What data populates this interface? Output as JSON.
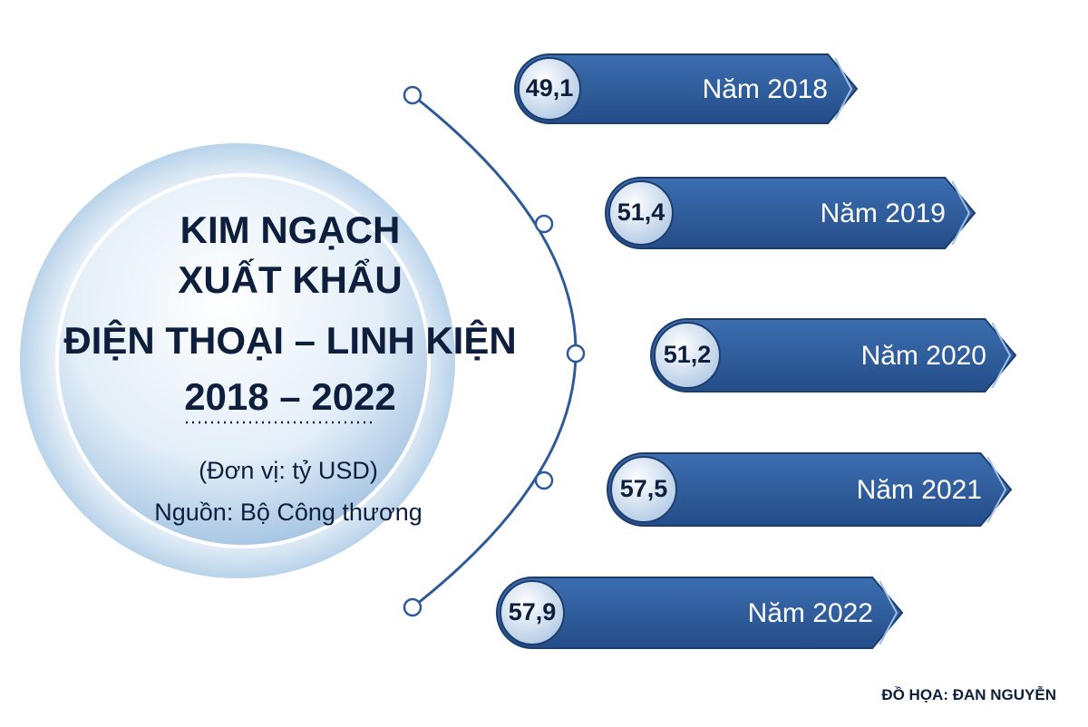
{
  "title_lines": [
    "KIM NGẠCH",
    "XUẤT KHẨU",
    "ĐIỆN THOẠI – LINH KIỆN",
    "2018 – 2022"
  ],
  "unit": "(Đơn vị: tỷ USD)",
  "source": "Nguồn: Bộ Công thương",
  "credit": "ĐỒ HỌA: ĐAN NGUYỄN",
  "items": [
    {
      "value": "49,1",
      "label": "Năm 2018"
    },
    {
      "value": "51,4",
      "label": "Năm 2019"
    },
    {
      "value": "51,2",
      "label": "Năm 2020"
    },
    {
      "value": "57,5",
      "label": "Năm 2021"
    },
    {
      "value": "57,9",
      "label": "Năm 2022"
    }
  ]
}
